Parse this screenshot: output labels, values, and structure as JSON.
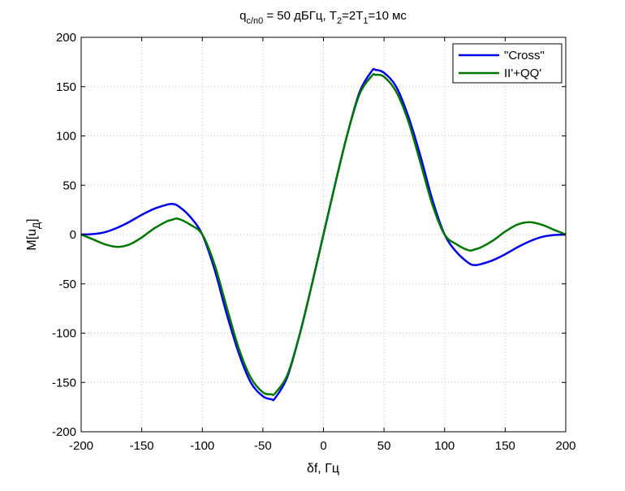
{
  "chart_data": {
    "type": "line",
    "title": {
      "prefix": "q",
      "prefix_sub": "c/n0",
      "mid": " = 50 дБГц, T",
      "t2_sub": "2",
      "mid2": "=2T",
      "t1_sub": "1",
      "suffix": "=10 мс"
    },
    "xlabel": "δf, Гц",
    "ylabel": {
      "main": "M[u",
      "sub": "Д",
      "close": "]"
    },
    "xlim": [
      -200,
      200
    ],
    "ylim": [
      -200,
      200
    ],
    "xticks": [
      -200,
      -150,
      -100,
      -50,
      0,
      50,
      100,
      150,
      200
    ],
    "yticks": [
      -200,
      -150,
      -100,
      -50,
      0,
      50,
      100,
      150,
      200
    ],
    "grid": true,
    "legend_position": "top-right",
    "x": [
      -200,
      -190,
      -180,
      -170,
      -160,
      -150,
      -140,
      -130,
      -125,
      -120,
      -110,
      -100,
      -90,
      -80,
      -70,
      -60,
      -50,
      -43,
      -40,
      -30,
      -20,
      -10,
      0,
      10,
      20,
      30,
      40,
      43,
      50,
      60,
      70,
      80,
      90,
      100,
      110,
      120,
      125,
      130,
      140,
      150,
      160,
      170,
      180,
      190,
      200
    ],
    "series": [
      {
        "name": "\"Cross\"",
        "color": "#0000ee",
        "values": [
          0,
          0.5,
          2.5,
          7,
          13,
          20,
          26,
          30,
          31,
          29,
          18,
          0,
          -35,
          -80,
          -120,
          -150,
          -164,
          -167,
          -166,
          -145,
          -103,
          -53,
          0,
          53,
          103,
          145,
          166,
          167,
          164,
          150,
          120,
          80,
          35,
          0,
          -18,
          -29,
          -31,
          -30,
          -26,
          -20,
          -13,
          -7,
          -2.5,
          -0.5,
          0
        ]
      },
      {
        "name": "II'+QQ'",
        "color": "#007700",
        "values": [
          0,
          -5,
          -10,
          -12.5,
          -10,
          -3,
          6,
          13,
          15,
          16,
          10,
          0,
          -30,
          -73,
          -115,
          -145,
          -160,
          -162,
          -161,
          -143,
          -103,
          -53,
          0,
          53,
          103,
          143,
          161,
          162,
          160,
          145,
          115,
          73,
          30,
          0,
          -10,
          -16,
          -15,
          -13,
          -6,
          3,
          10,
          12.5,
          10,
          5,
          0
        ]
      }
    ]
  }
}
